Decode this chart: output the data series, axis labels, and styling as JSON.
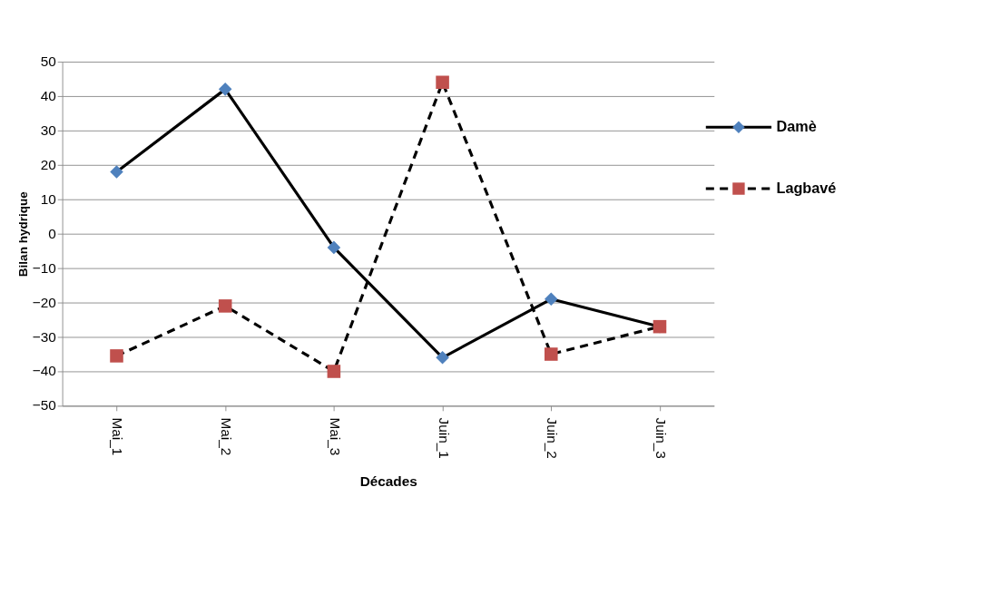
{
  "chart_data": {
    "type": "line",
    "xlabel": "Décades",
    "ylabel": "Bilan hydrique",
    "categories": [
      "Mai_1",
      "Mai_2",
      "Mai_3",
      "Juin_1",
      "Juin_2",
      "Juin_3"
    ],
    "series": [
      {
        "name": "Damè",
        "color": "#4f81bd",
        "marker": "diamond",
        "line_style": "solid",
        "values": [
          18,
          42,
          -4,
          -36,
          -19,
          -27
        ]
      },
      {
        "name": "Lagbavé",
        "color": "#c0504d",
        "marker": "square",
        "line_style": "dashed",
        "values": [
          -35.5,
          -21,
          -40,
          44,
          -35,
          -27
        ]
      }
    ],
    "ylim": [
      -50,
      50
    ],
    "yticks": [
      -50,
      -40,
      -30,
      -20,
      -10,
      0,
      10,
      20,
      30,
      40,
      50
    ],
    "grid": "y",
    "legend": "right"
  }
}
